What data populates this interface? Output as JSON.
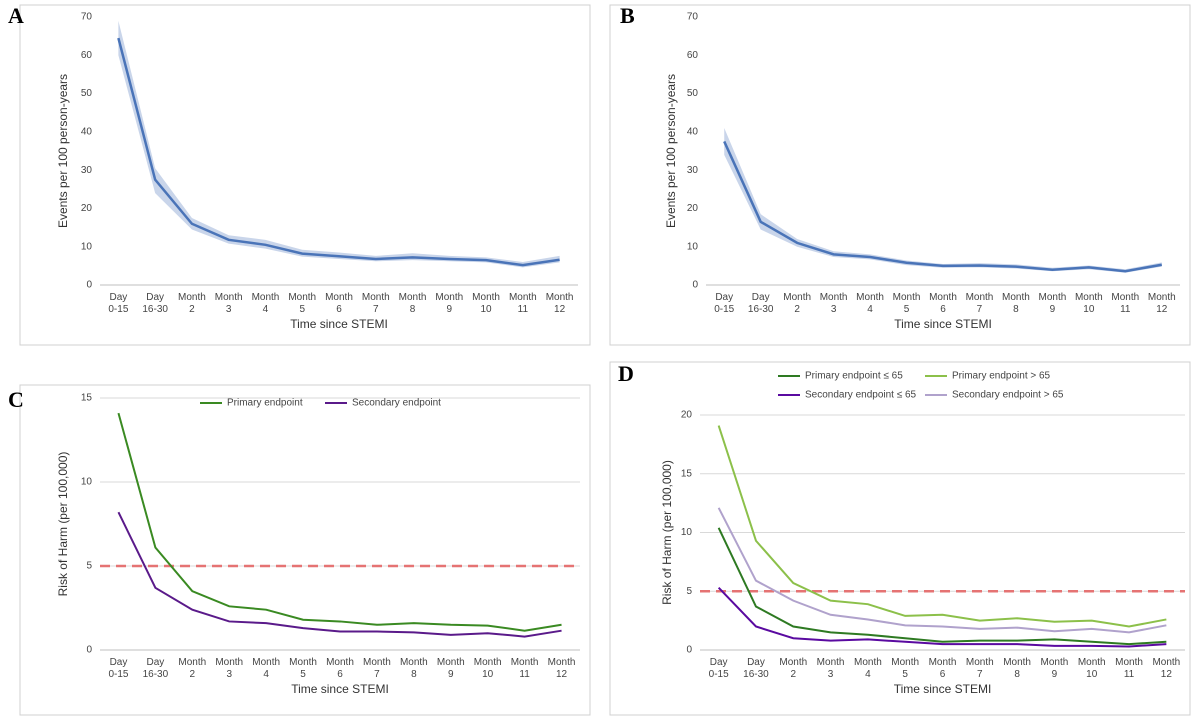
{
  "chart_data": [
    {
      "type": "line",
      "panel": "A",
      "x_label": "Time since STEMI",
      "y_label": "Events per 100 person-years",
      "categories": [
        [
          "Day",
          "0-15"
        ],
        [
          "Day",
          "16-30"
        ],
        [
          "Month",
          "2"
        ],
        [
          "Month",
          "3"
        ],
        [
          "Month",
          "4"
        ],
        [
          "Month",
          "5"
        ],
        [
          "Month",
          "6"
        ],
        [
          "Month",
          "7"
        ],
        [
          "Month",
          "8"
        ],
        [
          "Month",
          "9"
        ],
        [
          "Month",
          "10"
        ],
        [
          "Month",
          "11"
        ],
        [
          "Month",
          "12"
        ]
      ],
      "color": "#4a74b8",
      "band_color": "#c9d5ea",
      "values": [
        64.5,
        27.5,
        16,
        11.8,
        10.5,
        8.2,
        7.5,
        6.8,
        7.2,
        6.8,
        6.5,
        5.2,
        6.6
      ],
      "lower": [
        60,
        24,
        14.5,
        10.8,
        9.5,
        7.4,
        6.8,
        6.2,
        6.5,
        6.2,
        5.9,
        4.6,
        5.9
      ],
      "upper": [
        69,
        30.5,
        17.5,
        13,
        11.8,
        9.2,
        8.5,
        7.6,
        8.3,
        7.6,
        7.2,
        6.0,
        7.6
      ],
      "ylim": [
        0,
        70
      ],
      "yticks": [
        0,
        10,
        20,
        30,
        40,
        50,
        60,
        70
      ],
      "grid": false
    },
    {
      "type": "line",
      "panel": "B",
      "x_label": "Time since STEMI",
      "y_label": "Events per 100 person-years",
      "categories": [
        [
          "Day",
          "0-15"
        ],
        [
          "Day",
          "16-30"
        ],
        [
          "Month",
          "2"
        ],
        [
          "Month",
          "3"
        ],
        [
          "Month",
          "4"
        ],
        [
          "Month",
          "5"
        ],
        [
          "Month",
          "6"
        ],
        [
          "Month",
          "7"
        ],
        [
          "Month",
          "8"
        ],
        [
          "Month",
          "9"
        ],
        [
          "Month",
          "10"
        ],
        [
          "Month",
          "11"
        ],
        [
          "Month",
          "12"
        ]
      ],
      "color": "#4a74b8",
      "band_color": "#c9d5ea",
      "values": [
        37.5,
        16.5,
        11,
        8,
        7.3,
        5.8,
        5,
        5.1,
        4.8,
        4,
        4.6,
        3.6,
        5.3
      ],
      "lower": [
        34,
        14.5,
        10,
        7.3,
        6.7,
        5.2,
        4.5,
        4.6,
        4.3,
        3.6,
        4.1,
        3.2,
        4.8
      ],
      "upper": [
        41,
        18.5,
        12,
        8.8,
        8,
        6.4,
        5.5,
        5.7,
        5.4,
        4.5,
        5.1,
        4.1,
        5.9
      ],
      "ylim": [
        0,
        70
      ],
      "yticks": [
        0,
        10,
        20,
        30,
        40,
        50,
        60,
        70
      ],
      "grid": false
    },
    {
      "type": "line",
      "panel": "C",
      "x_label": "Time since STEMI",
      "y_label": "Risk of Harm (per 100,000)",
      "categories": [
        [
          "Day",
          "0-15"
        ],
        [
          "Day",
          "16-30"
        ],
        [
          "Month",
          "2"
        ],
        [
          "Month",
          "3"
        ],
        [
          "Month",
          "4"
        ],
        [
          "Month",
          "5"
        ],
        [
          "Month",
          "6"
        ],
        [
          "Month",
          "7"
        ],
        [
          "Month",
          "8"
        ],
        [
          "Month",
          "9"
        ],
        [
          "Month",
          "10"
        ],
        [
          "Month",
          "11"
        ],
        [
          "Month",
          "12"
        ]
      ],
      "series": [
        {
          "name": "Primary endpoint",
          "color": "#3a8a22",
          "values": [
            14.1,
            6.1,
            3.5,
            2.6,
            2.4,
            1.8,
            1.7,
            1.5,
            1.6,
            1.5,
            1.45,
            1.15,
            1.5
          ]
        },
        {
          "name": "Secondary endpoint",
          "color": "#5a1a8a",
          "values": [
            8.2,
            3.7,
            2.4,
            1.7,
            1.6,
            1.3,
            1.1,
            1.1,
            1.05,
            0.9,
            1.0,
            0.8,
            1.15
          ]
        }
      ],
      "threshold": 5,
      "threshold_color": "#e57373",
      "ylim": [
        0,
        15
      ],
      "yticks": [
        0,
        5,
        10,
        15
      ],
      "grid": true,
      "legend": "top"
    },
    {
      "type": "line",
      "panel": "D",
      "x_label": "Time since STEMI",
      "y_label": "Risk of Harm (per 100,000)",
      "categories": [
        [
          "Day",
          "0-15"
        ],
        [
          "Day",
          "16-30"
        ],
        [
          "Month",
          "2"
        ],
        [
          "Month",
          "3"
        ],
        [
          "Month",
          "4"
        ],
        [
          "Month",
          "5"
        ],
        [
          "Month",
          "6"
        ],
        [
          "Month",
          "7"
        ],
        [
          "Month",
          "8"
        ],
        [
          "Month",
          "9"
        ],
        [
          "Month",
          "10"
        ],
        [
          "Month",
          "11"
        ],
        [
          "Month",
          "12"
        ]
      ],
      "series": [
        {
          "name": "Primary endpoint ≤ 65",
          "color": "#2e7a22",
          "values": [
            10.4,
            3.7,
            2.0,
            1.5,
            1.3,
            1.0,
            0.7,
            0.8,
            0.8,
            0.9,
            0.7,
            0.5,
            0.7
          ]
        },
        {
          "name": "Primary endpoint > 65",
          "color": "#8cc04a",
          "values": [
            19.1,
            9.3,
            5.7,
            4.2,
            3.9,
            2.9,
            3.0,
            2.5,
            2.7,
            2.4,
            2.5,
            2.0,
            2.6
          ]
        },
        {
          "name": "Secondary endpoint ≤ 65",
          "color": "#5a0aa0",
          "values": [
            5.3,
            2.0,
            1.0,
            0.8,
            0.9,
            0.7,
            0.5,
            0.5,
            0.5,
            0.35,
            0.35,
            0.3,
            0.5
          ]
        },
        {
          "name": "Secondary endpoint > 65",
          "color": "#b0a2cc",
          "values": [
            12.1,
            5.9,
            4.2,
            3.0,
            2.6,
            2.1,
            2.0,
            1.8,
            1.9,
            1.6,
            1.8,
            1.5,
            2.1
          ]
        }
      ],
      "threshold": 5,
      "threshold_color": "#e57373",
      "ylim": [
        0,
        20
      ],
      "yticks": [
        0,
        5,
        10,
        15,
        20
      ],
      "grid": true,
      "legend": "top"
    }
  ]
}
